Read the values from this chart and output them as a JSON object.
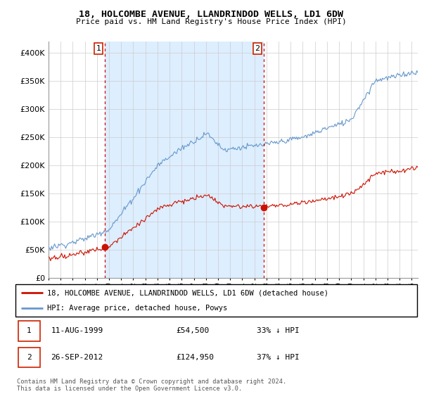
{
  "title": "18, HOLCOMBE AVENUE, LLANDRINDOD WELLS, LD1 6DW",
  "subtitle": "Price paid vs. HM Land Registry's House Price Index (HPI)",
  "sale1_date": "11-AUG-1999",
  "sale1_price": 54500,
  "sale1_label": "1",
  "sale1_year": 1999.62,
  "sale2_date": "26-SEP-2012",
  "sale2_price": 124950,
  "sale2_label": "2",
  "sale2_year": 2012.75,
  "legend_line1": "18, HOLCOMBE AVENUE, LLANDRINDOD WELLS, LD1 6DW (detached house)",
  "legend_line2": "HPI: Average price, detached house, Powys",
  "footer": "Contains HM Land Registry data © Crown copyright and database right 2024.\nThis data is licensed under the Open Government Licence v3.0.",
  "hpi_color": "#6699cc",
  "property_color": "#cc1100",
  "vline_color": "#cc0000",
  "shade_color": "#ddeeff",
  "grid_color": "#cccccc",
  "ylim": [
    0,
    420000
  ],
  "xlim_start": 1995.0,
  "xlim_end": 2025.5
}
